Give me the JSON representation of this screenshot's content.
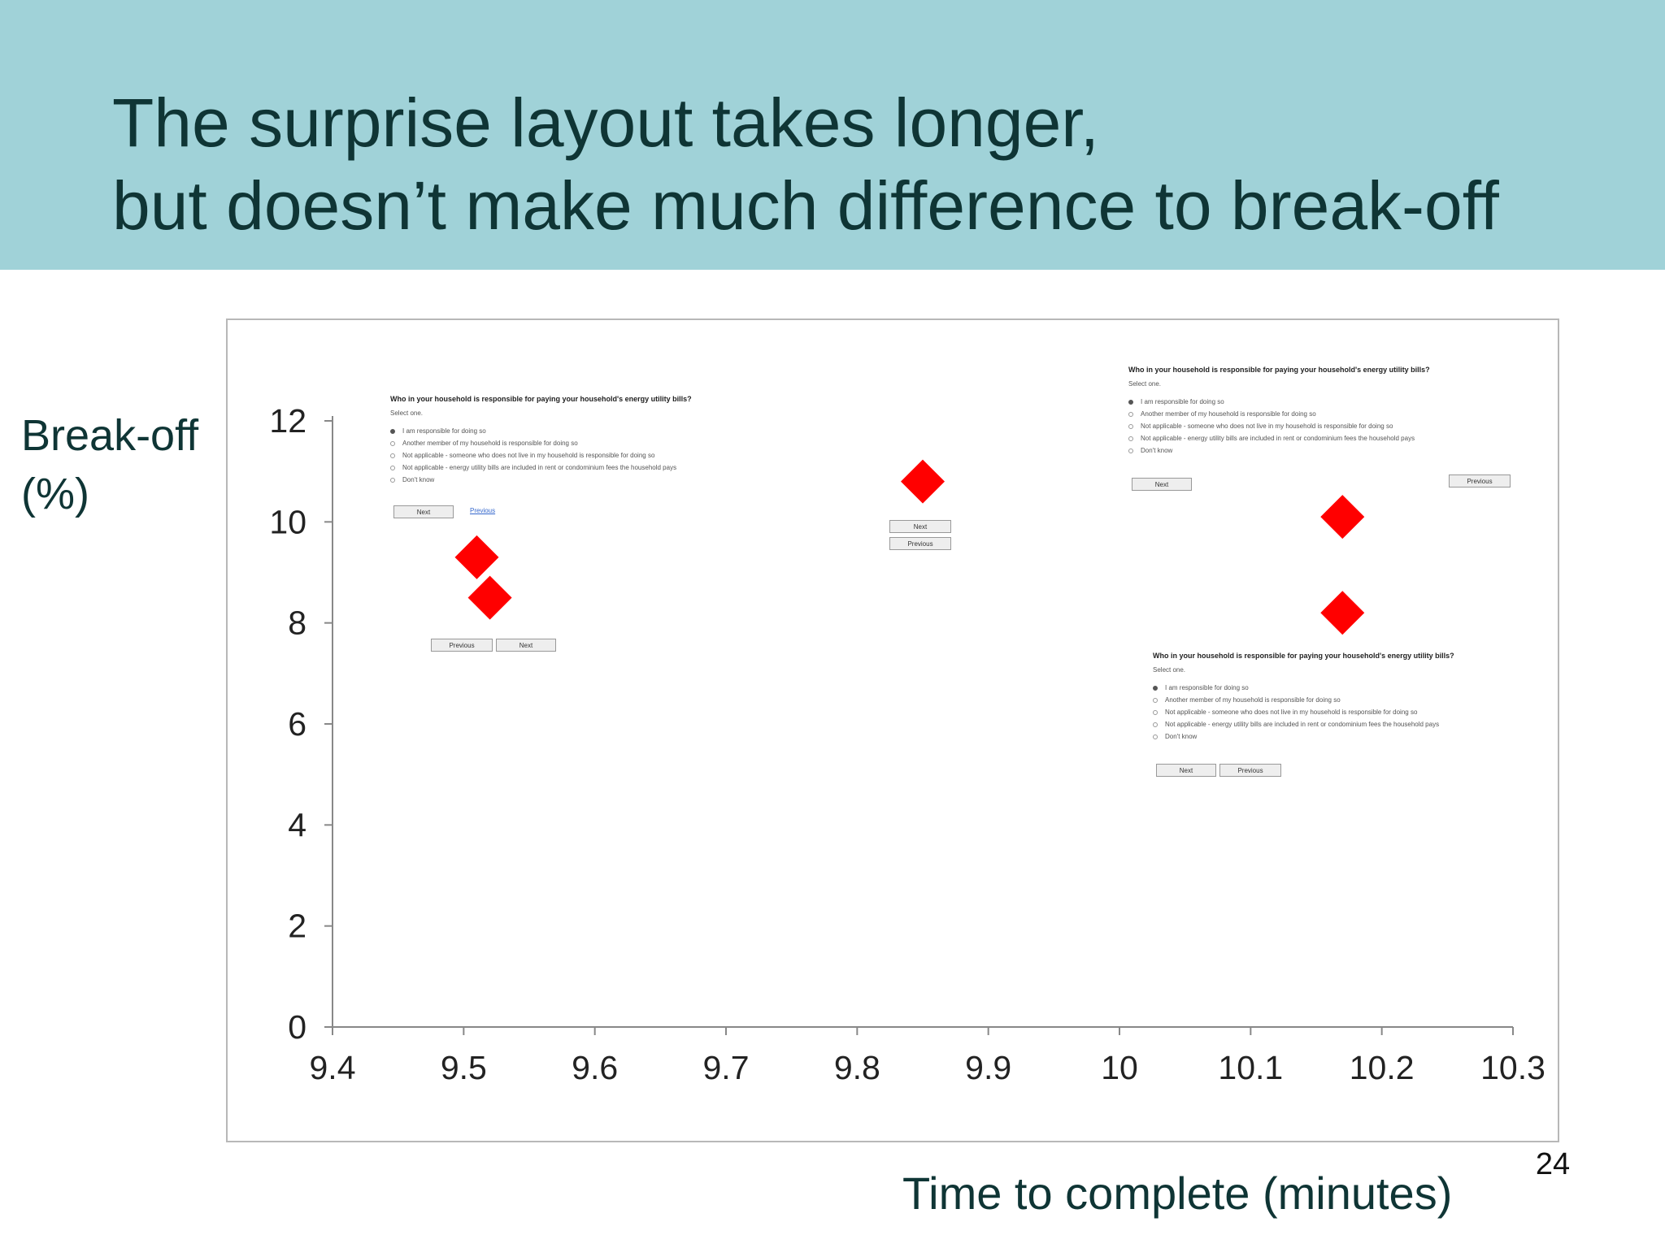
{
  "slide": {
    "title_lines": [
      "The surprise layout takes longer,",
      "but doesn’t make much difference to break-off"
    ],
    "ylabel_lines": [
      "Break-off",
      "(%)"
    ],
    "xlabel": "Time to complete (minutes)",
    "page_number": "24"
  },
  "chart_data": {
    "type": "scatter",
    "title": "",
    "xlabel": "Time to complete (minutes)",
    "ylabel": "Break-off (%)",
    "xlim": [
      9.4,
      10.3
    ],
    "ylim": [
      0,
      12
    ],
    "x_ticks": [
      "9.4",
      "9.5",
      "9.6",
      "9.7",
      "9.8",
      "9.9",
      "10",
      "10.1",
      "10.2",
      "10.3"
    ],
    "y_ticks": [
      "0",
      "2",
      "4",
      "6",
      "8",
      "10",
      "12"
    ],
    "grid": false,
    "legend": "none",
    "marker": "diamond",
    "marker_color": "#ff0000",
    "series": [
      {
        "x": [
          9.51,
          9.52,
          9.85,
          10.17,
          10.17
        ],
        "y": [
          9.3,
          8.5,
          10.8,
          10.1,
          8.2
        ]
      }
    ]
  },
  "surveys": [
    {
      "question": "Who in your household is responsible for paying your household's energy utility bills?",
      "select_text": "Select one.",
      "options": [
        "I am responsible for doing so",
        "Another member of my household is responsible for doing so",
        "Not applicable - someone who does not live in my household is responsible for doing so",
        "Not applicable - energy utility bills are included in rent or condominium fees the household pays",
        "Don't know"
      ],
      "checked_index": 0,
      "next_label": "Next",
      "previous_label": "Previous"
    },
    {
      "question": "Who in your household is responsible for paying your household's energy utility bills?",
      "select_text": "Select one.",
      "options": [
        "I am responsible for doing so",
        "Another member of my household is responsible for doing so",
        "Not applicable - someone who does not live in my household is responsible for doing so",
        "Not applicable - energy utility bills are included in rent or condominium fees the household pays",
        "Don't know"
      ],
      "checked_index": 0,
      "next_label": "Next",
      "previous_label": "Previous"
    },
    {
      "question": "Who in your household is responsible for paying your household's energy utility bills?",
      "select_text": "Select one.",
      "options": [
        "I am responsible for doing so",
        "Another member of my household is responsible for doing so",
        "Not applicable - someone who does not live in my household is responsible for doing so",
        "Not applicable - energy utility bills are included in rent or condominium fees the household pays",
        "Don't know"
      ],
      "checked_index": 0,
      "next_label": "Next",
      "previous_label": "Previous"
    }
  ],
  "standalone_buttons": {
    "left_previous": "Previous",
    "left_next": "Next",
    "middle_next": "Next",
    "middle_previous": "Previous"
  }
}
